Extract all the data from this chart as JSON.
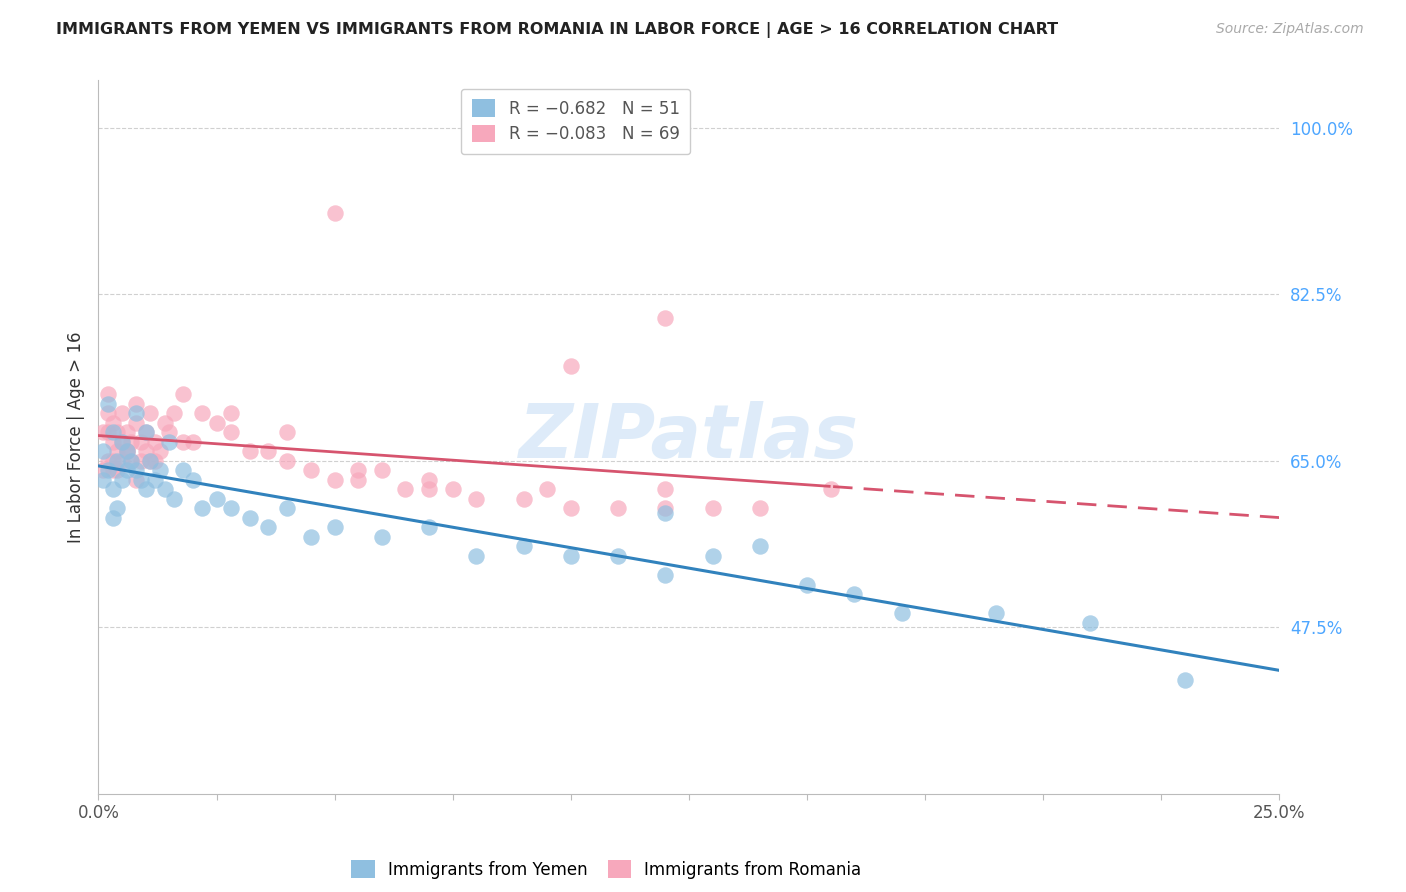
{
  "title": "IMMIGRANTS FROM YEMEN VS IMMIGRANTS FROM ROMANIA IN LABOR FORCE | AGE > 16 CORRELATION CHART",
  "source": "Source: ZipAtlas.com",
  "ylabel": "In Labor Force | Age > 16",
  "xlim": [
    0.0,
    0.25
  ],
  "ylim": [
    0.3,
    1.05
  ],
  "yticks": [
    0.475,
    0.65,
    0.825,
    1.0
  ],
  "ytick_labels": [
    "47.5%",
    "65.0%",
    "82.5%",
    "100.0%"
  ],
  "xticks": [
    0.0,
    0.025,
    0.05,
    0.075,
    0.1,
    0.125,
    0.15,
    0.175,
    0.2,
    0.225,
    0.25
  ],
  "xtick_edge_labels": {
    "0.0": "0.0%",
    "0.25": "25.0%"
  },
  "blue_color": "#8fbfe0",
  "pink_color": "#f7a8bc",
  "blue_line_color": "#3182bd",
  "pink_line_color": "#d6546e",
  "watermark_color": "#c8dff5",
  "yemen_x": [
    0.001,
    0.002,
    0.002,
    0.003,
    0.003,
    0.004,
    0.004,
    0.005,
    0.005,
    0.006,
    0.006,
    0.007,
    0.008,
    0.008,
    0.009,
    0.01,
    0.01,
    0.011,
    0.012,
    0.013,
    0.014,
    0.015,
    0.016,
    0.018,
    0.02,
    0.022,
    0.025,
    0.028,
    0.032,
    0.036,
    0.04,
    0.045,
    0.05,
    0.06,
    0.07,
    0.08,
    0.09,
    0.1,
    0.11,
    0.12,
    0.13,
    0.14,
    0.15,
    0.16,
    0.17,
    0.19,
    0.21,
    0.23,
    0.001,
    0.003,
    0.12
  ],
  "yemen_y": [
    0.66,
    0.71,
    0.64,
    0.68,
    0.62,
    0.65,
    0.6,
    0.67,
    0.63,
    0.64,
    0.66,
    0.65,
    0.7,
    0.64,
    0.63,
    0.68,
    0.62,
    0.65,
    0.63,
    0.64,
    0.62,
    0.67,
    0.61,
    0.64,
    0.63,
    0.6,
    0.61,
    0.6,
    0.59,
    0.58,
    0.6,
    0.57,
    0.58,
    0.57,
    0.58,
    0.55,
    0.56,
    0.55,
    0.55,
    0.53,
    0.55,
    0.56,
    0.52,
    0.51,
    0.49,
    0.49,
    0.48,
    0.42,
    0.63,
    0.59,
    0.595
  ],
  "romania_x": [
    0.001,
    0.001,
    0.002,
    0.002,
    0.002,
    0.003,
    0.003,
    0.003,
    0.004,
    0.004,
    0.004,
    0.005,
    0.005,
    0.005,
    0.006,
    0.006,
    0.007,
    0.007,
    0.008,
    0.008,
    0.009,
    0.009,
    0.01,
    0.01,
    0.011,
    0.011,
    0.012,
    0.013,
    0.014,
    0.015,
    0.016,
    0.018,
    0.02,
    0.022,
    0.025,
    0.028,
    0.032,
    0.036,
    0.04,
    0.045,
    0.05,
    0.055,
    0.06,
    0.065,
    0.07,
    0.075,
    0.08,
    0.09,
    0.1,
    0.11,
    0.12,
    0.13,
    0.002,
    0.008,
    0.018,
    0.028,
    0.04,
    0.055,
    0.07,
    0.095,
    0.12,
    0.14,
    0.155,
    0.003,
    0.006,
    0.012,
    0.12,
    0.1,
    0.05
  ],
  "romania_y": [
    0.68,
    0.64,
    0.7,
    0.65,
    0.68,
    0.67,
    0.65,
    0.69,
    0.66,
    0.68,
    0.64,
    0.7,
    0.65,
    0.67,
    0.66,
    0.68,
    0.65,
    0.67,
    0.69,
    0.63,
    0.65,
    0.67,
    0.66,
    0.68,
    0.65,
    0.7,
    0.67,
    0.66,
    0.69,
    0.68,
    0.7,
    0.67,
    0.67,
    0.7,
    0.69,
    0.68,
    0.66,
    0.66,
    0.65,
    0.64,
    0.63,
    0.63,
    0.64,
    0.62,
    0.62,
    0.62,
    0.61,
    0.61,
    0.6,
    0.6,
    0.6,
    0.6,
    0.72,
    0.71,
    0.72,
    0.7,
    0.68,
    0.64,
    0.63,
    0.62,
    0.62,
    0.6,
    0.62,
    0.64,
    0.66,
    0.65,
    0.8,
    0.75,
    0.91
  ]
}
